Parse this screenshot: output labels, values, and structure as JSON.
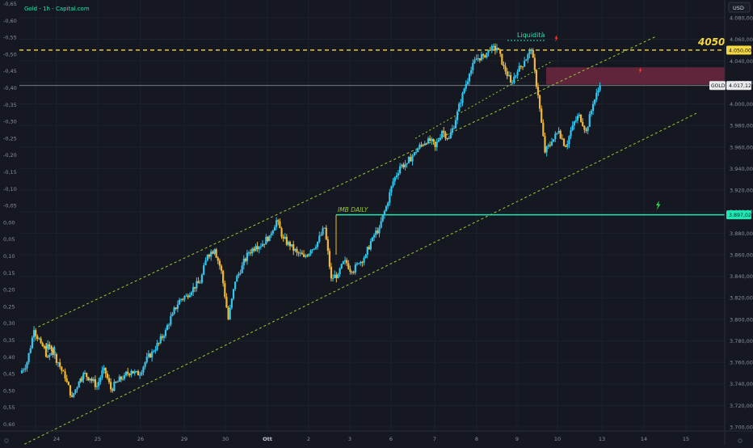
{
  "header": {
    "title": "Gold - 1h - Capital.com",
    "currency_button": "USD"
  },
  "colors": {
    "background": "#151820",
    "candle_up": "#33c6ee",
    "candle_down": "#f0b83a",
    "channel": "#9acd32",
    "imb_line": "#1de9b6",
    "level_line": "#f5d742",
    "price_line": "#9aa0a6",
    "zone": "#7a2a44",
    "axis_text": "#8a8f99",
    "up_bolt": "#39d353",
    "down_bolt": "#ff3b30"
  },
  "annotations": {
    "level_4050": "4050$",
    "liquidity": "Liquidità",
    "imb_daily": "IMB DAILY",
    "badge_4050": "4.050,00",
    "badge_gold_label": "GOLD",
    "badge_gold_value": "4.017,12",
    "badge_imb": "3.897,02"
  },
  "chart_data": {
    "type": "candlestick",
    "title": "Gold - 1h - Capital.com",
    "right_axis": {
      "label": "USD",
      "ticks": [
        "4.080,00",
        "4.060,00",
        "4.040,00",
        "4.020,00",
        "4.000,00",
        "3.980,00",
        "3.960,00",
        "3.940,00",
        "3.920,00",
        "3.900,00",
        "3.880,00",
        "3.860,00",
        "3.840,00",
        "3.820,00",
        "3.800,00",
        "3.780,00",
        "3.760,00",
        "3.740,00",
        "3.720,00",
        "3.700,00"
      ],
      "range": [
        3698,
        4086
      ]
    },
    "left_axis": {
      "ticks": [
        "-0,65",
        "-0,60",
        "-0,55",
        "-0,50",
        "-0,45",
        "-0,40",
        "-0,35",
        "-0,30",
        "-0,25",
        "-0,20",
        "-0,15",
        "-0,10",
        "-0,05",
        "0,00",
        "0,05",
        "0,10",
        "0,15",
        "0,20",
        "0,25",
        "0,30",
        "0,35",
        "0,40",
        "0,45",
        "0,50",
        "0,55",
        "0,60"
      ]
    },
    "x_axis": {
      "ticks": [
        "24",
        "25",
        "26",
        "29",
        "30",
        "Ott",
        "2",
        "3",
        "6",
        "7",
        "8",
        "9",
        "10",
        "13",
        "14",
        "15"
      ]
    },
    "levels": [
      {
        "name": "4050$",
        "price": 4050
      },
      {
        "name": "GOLD",
        "price": 4017.12
      },
      {
        "name": "IMB DAILY",
        "price": 3897.02
      }
    ],
    "zone": {
      "from": 4018,
      "to": 4034
    },
    "channel": {
      "upper": [
        [
          "9/23 10:00",
          3793
        ],
        [
          "10/14 20:00",
          4063
        ]
      ],
      "lower": [
        [
          "9/23 02:00",
          3684
        ],
        [
          "10/15 20:00",
          3992
        ]
      ]
    },
    "close_series": [
      [
        "9/23 00:00",
        3750
      ],
      [
        "9/23 04:00",
        3760
      ],
      [
        "9/23 08:00",
        3790
      ],
      [
        "9/23 12:00",
        3778
      ],
      [
        "9/23 16:00",
        3765
      ],
      [
        "9/23 20:00",
        3770
      ],
      [
        "9/24 00:00",
        3775
      ],
      [
        "9/24 04:00",
        3772
      ],
      [
        "9/24 08:00",
        3760
      ],
      [
        "9/24 12:00",
        3745
      ],
      [
        "9/24 16:00",
        3728
      ],
      [
        "9/24 20:00",
        3742
      ],
      [
        "9/25 00:00",
        3750
      ],
      [
        "9/25 04:00",
        3745
      ],
      [
        "9/25 08:00",
        3738
      ],
      [
        "9/25 12:00",
        3755
      ],
      [
        "9/25 16:00",
        3735
      ],
      [
        "9/25 20:00",
        3742
      ],
      [
        "9/26 00:00",
        3748
      ],
      [
        "9/26 04:00",
        3752
      ],
      [
        "9/26 08:00",
        3748
      ],
      [
        "9/26 12:00",
        3760
      ],
      [
        "9/26 16:00",
        3770
      ],
      [
        "9/26 20:00",
        3778
      ],
      [
        "9/29 00:00",
        3790
      ],
      [
        "9/29 04:00",
        3805
      ],
      [
        "9/29 08:00",
        3818
      ],
      [
        "9/29 12:00",
        3822
      ],
      [
        "9/29 16:00",
        3830
      ],
      [
        "9/29 20:00",
        3834
      ],
      [
        "9/30 00:00",
        3860
      ],
      [
        "9/30 04:00",
        3865
      ],
      [
        "9/30 08:00",
        3845
      ],
      [
        "9/30 12:00",
        3800
      ],
      [
        "9/30 16:00",
        3835
      ],
      [
        "9/30 20:00",
        3850
      ],
      [
        "10/1 00:00",
        3862
      ],
      [
        "10/1 04:00",
        3868
      ],
      [
        "10/1 08:00",
        3870
      ],
      [
        "10/1 12:00",
        3878
      ],
      [
        "10/1 16:00",
        3892
      ],
      [
        "10/1 20:00",
        3875
      ],
      [
        "10/2 00:00",
        3868
      ],
      [
        "10/2 04:00",
        3862
      ],
      [
        "10/2 08:00",
        3858
      ],
      [
        "10/2 12:00",
        3864
      ],
      [
        "10/2 16:00",
        3872
      ],
      [
        "10/2 20:00",
        3885
      ],
      [
        "10/3 00:00",
        3838
      ],
      [
        "10/3 04:00",
        3842
      ],
      [
        "10/3 08:00",
        3855
      ],
      [
        "10/3 12:00",
        3844
      ],
      [
        "10/3 16:00",
        3852
      ],
      [
        "10/3 20:00",
        3860
      ],
      [
        "10/6 00:00",
        3876
      ],
      [
        "10/6 04:00",
        3885
      ],
      [
        "10/6 08:00",
        3905
      ],
      [
        "10/6 12:00",
        3928
      ],
      [
        "10/6 16:00",
        3942
      ],
      [
        "10/6 20:00",
        3945
      ],
      [
        "10/7 00:00",
        3955
      ],
      [
        "10/7 04:00",
        3962
      ],
      [
        "10/7 08:00",
        3968
      ],
      [
        "10/7 12:00",
        3960
      ],
      [
        "10/7 16:00",
        3975
      ],
      [
        "10/7 20:00",
        3968
      ],
      [
        "10/8 00:00",
        3985
      ],
      [
        "10/8 04:00",
        4010
      ],
      [
        "10/8 08:00",
        4028
      ],
      [
        "10/8 12:00",
        4042
      ],
      [
        "10/8 16:00",
        4045
      ],
      [
        "10/8 20:00",
        4050
      ],
      [
        "10/9 00:00",
        4052
      ],
      [
        "10/9 04:00",
        4035
      ],
      [
        "10/9 08:00",
        4020
      ],
      [
        "10/9 12:00",
        4030
      ],
      [
        "10/9 16:00",
        4040
      ],
      [
        "10/9 20:00",
        4050
      ],
      [
        "10/10 00:00",
        4008
      ],
      [
        "10/10 04:00",
        3955
      ],
      [
        "10/10 08:00",
        3965
      ],
      [
        "10/10 12:00",
        3975
      ],
      [
        "10/10 16:00",
        3960
      ],
      [
        "10/10 20:00",
        3980
      ],
      [
        "10/13 00:00",
        3990
      ],
      [
        "10/13 04:00",
        3975
      ],
      [
        "10/13 08:00",
        4000
      ],
      [
        "10/13 12:00",
        4017
      ]
    ]
  }
}
